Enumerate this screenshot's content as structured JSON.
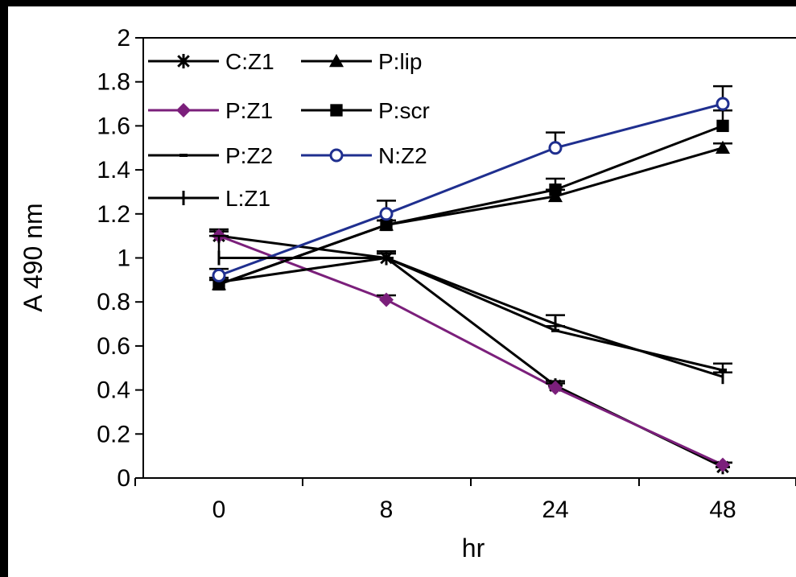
{
  "chart_data": {
    "type": "line",
    "categories": [
      "0",
      "8",
      "24",
      "48"
    ],
    "xlabel": "hr",
    "ylabel": "A 490 nm",
    "ylim": [
      0,
      2
    ],
    "yticks": [
      "0",
      "0.2",
      "0.4",
      "0.6",
      "0.8",
      "1",
      "1.2",
      "1.4",
      "1.6",
      "1.8",
      "2"
    ],
    "grid": false,
    "legend_position": "top-left",
    "series": [
      {
        "name": "C:Z1",
        "marker": "asterisk",
        "color": "#000000",
        "values": [
          1.1,
          1.0,
          0.42,
          0.05
        ],
        "errors": [
          0.03,
          0.03,
          0.02,
          0.02
        ]
      },
      {
        "name": "P:lip",
        "marker": "triangle",
        "color": "#000000",
        "values": [
          0.88,
          1.15,
          1.28,
          1.5
        ],
        "errors": [
          0.02,
          0.02,
          0.03,
          0.02
        ]
      },
      {
        "name": "P:Z1",
        "marker": "diamond",
        "color": "#7b1f7b",
        "values": [
          1.1,
          0.81,
          0.41,
          0.06
        ],
        "errors": [
          0.02,
          0.02,
          0.02,
          0.01
        ]
      },
      {
        "name": "P:scr",
        "marker": "square",
        "color": "#000000",
        "values": [
          0.88,
          1.15,
          1.31,
          1.6
        ],
        "errors": [
          0.02,
          0.02,
          0.05,
          0.07
        ]
      },
      {
        "name": "P:Z2",
        "marker": "dash",
        "color": "#000000",
        "values": [
          0.89,
          1.0,
          0.67,
          0.49
        ],
        "errors": [
          0.02,
          0.02,
          0.02,
          0.03
        ]
      },
      {
        "name": "N:Z2",
        "marker": "circle",
        "color": "#1f2f8f",
        "values": [
          0.92,
          1.2,
          1.5,
          1.7
        ],
        "errors": [
          0.03,
          0.06,
          0.07,
          0.08
        ]
      },
      {
        "name": "L:Z1",
        "marker": "plus",
        "color": "#000000",
        "values": [
          1.0,
          1.0,
          0.7,
          0.46
        ],
        "errors": [
          0.1,
          0.02,
          0.04,
          0.02
        ]
      }
    ]
  }
}
